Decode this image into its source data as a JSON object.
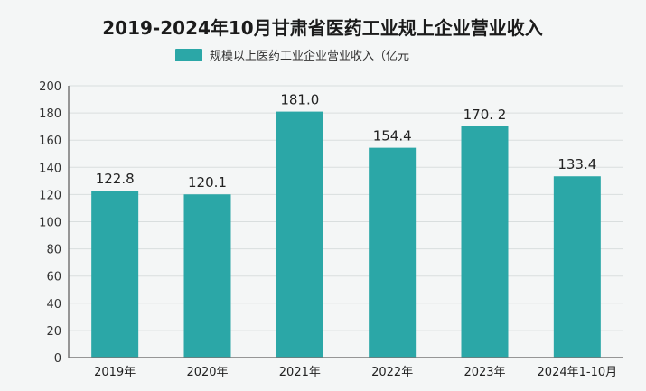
{
  "chart_data": {
    "type": "bar",
    "title": "2019-2024年10月甘肃省医药工业规上企业营业收入",
    "legend": {
      "label": "规模以上医药工业企业营业收入（亿元",
      "position": "top-center"
    },
    "categories": [
      "2019年",
      "2020年",
      "2021年",
      "2022年",
      "2023年",
      "2024年1-10月"
    ],
    "values": [
      122.8,
      120.1,
      181.0,
      154.4,
      170.2,
      133.4
    ],
    "value_labels": [
      "122.8",
      "120.1",
      "181.0",
      "154.4",
      "170. 2",
      "133.4"
    ],
    "series": [
      {
        "name": "规模以上医药工业企业营业收入（亿元",
        "values": [
          122.8,
          120.1,
          181.0,
          154.4,
          170.2,
          133.4
        ]
      }
    ],
    "ylim": [
      0,
      200
    ],
    "yticks": [
      0,
      20,
      40,
      60,
      80,
      100,
      120,
      140,
      160,
      180,
      200
    ],
    "grid": true,
    "bar_color": "#2ba7a7",
    "xlabel": "",
    "ylabel": ""
  }
}
